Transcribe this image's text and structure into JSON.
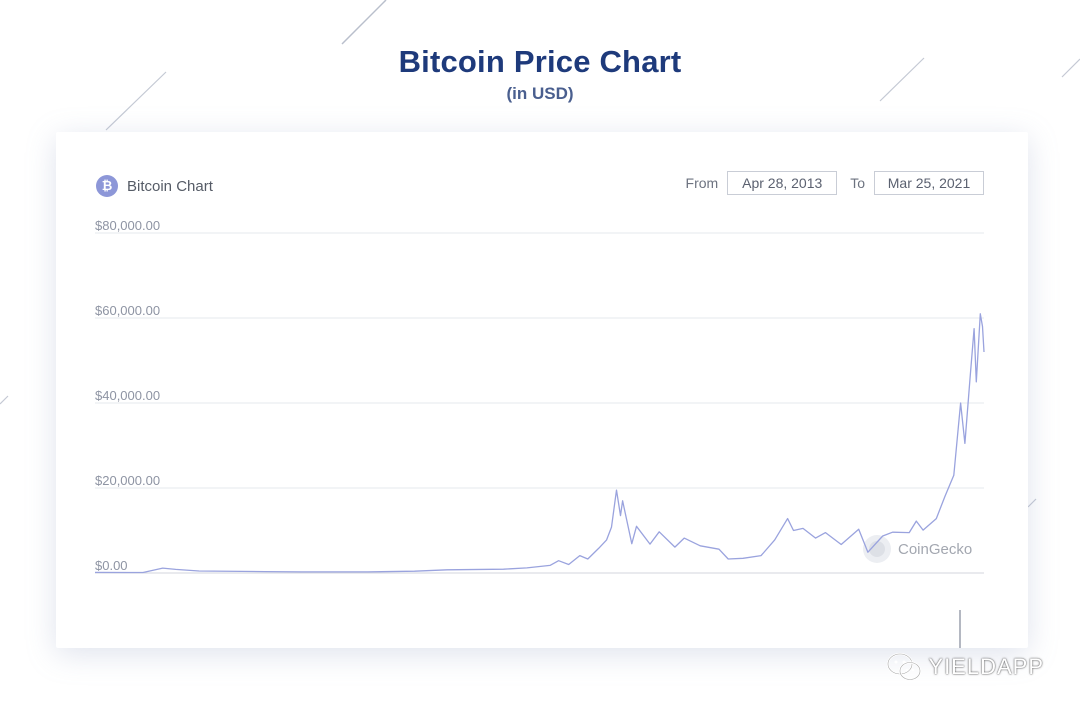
{
  "header": {
    "title": "Bitcoin Price Chart",
    "subtitle": "(in USD)"
  },
  "card": {
    "icon": "bitcoin-icon",
    "chart_name": "Bitcoin Chart",
    "from_label": "From",
    "from_date": "Apr 28, 2013",
    "to_label": "To",
    "to_date": "Mar 25, 2021",
    "watermark": "CoinGecko"
  },
  "footer": {
    "brand": "YIELDAPP",
    "brand_icon": "wechat-icon"
  },
  "colors": {
    "title": "#1e3a7b",
    "line": "#9aa3de",
    "icon": "#8d97d8"
  },
  "chart_data": {
    "type": "line",
    "series": [
      {
        "values": [
          [
            "2013-04-28",
            135
          ],
          [
            "2013-10-01",
            125
          ],
          [
            "2013-12-04",
            1150
          ],
          [
            "2014-01-15",
            850
          ],
          [
            "2014-04-01",
            470
          ],
          [
            "2014-11-01",
            330
          ],
          [
            "2015-03-01",
            250
          ],
          [
            "2015-10-01",
            250
          ],
          [
            "2016-03-01",
            420
          ],
          [
            "2016-06-15",
            750
          ],
          [
            "2016-12-15",
            900
          ],
          [
            "2017-03-01",
            1200
          ],
          [
            "2017-05-15",
            1800
          ],
          [
            "2017-06-12",
            2900
          ],
          [
            "2017-07-15",
            2000
          ],
          [
            "2017-08-20",
            4100
          ],
          [
            "2017-09-15",
            3300
          ],
          [
            "2017-10-20",
            5800
          ],
          [
            "2017-11-15",
            7800
          ],
          [
            "2017-12-01",
            10800
          ],
          [
            "2017-12-17",
            19500
          ],
          [
            "2017-12-30",
            13500
          ],
          [
            "2018-01-06",
            17000
          ],
          [
            "2018-02-05",
            6900
          ],
          [
            "2018-02-20",
            11000
          ],
          [
            "2018-04-05",
            6800
          ],
          [
            "2018-05-05",
            9700
          ],
          [
            "2018-06-25",
            6100
          ],
          [
            "2018-07-25",
            8200
          ],
          [
            "2018-09-15",
            6400
          ],
          [
            "2018-11-15",
            5600
          ],
          [
            "2018-12-15",
            3300
          ],
          [
            "2019-02-01",
            3450
          ],
          [
            "2019-04-01",
            4100
          ],
          [
            "2019-05-15",
            7800
          ],
          [
            "2019-06-26",
            12800
          ],
          [
            "2019-07-15",
            10000
          ],
          [
            "2019-08-15",
            10500
          ],
          [
            "2019-09-25",
            8200
          ],
          [
            "2019-10-27",
            9500
          ],
          [
            "2019-12-17",
            6700
          ],
          [
            "2020-02-12",
            10300
          ],
          [
            "2020-03-13",
            4900
          ],
          [
            "2020-04-30",
            8700
          ],
          [
            "2020-06-01",
            9600
          ],
          [
            "2020-07-25",
            9500
          ],
          [
            "2020-08-17",
            12200
          ],
          [
            "2020-09-08",
            10100
          ],
          [
            "2020-10-21",
            12800
          ],
          [
            "2020-11-18",
            18000
          ],
          [
            "2020-12-17",
            23000
          ],
          [
            "2021-01-08",
            40000
          ],
          [
            "2021-01-22",
            30500
          ],
          [
            "2021-02-08",
            46000
          ],
          [
            "2021-02-21",
            57500
          ],
          [
            "2021-02-28",
            45000
          ],
          [
            "2021-03-13",
            61000
          ],
          [
            "2021-03-20",
            58000
          ],
          [
            "2021-03-25",
            52000
          ]
        ]
      }
    ],
    "x_range": [
      "2013-04-28",
      "2021-03-25"
    ],
    "ylim": [
      0,
      80000
    ],
    "yticks": [
      "$0.00",
      "$20,000.00",
      "$40,000.00",
      "$60,000.00",
      "$80,000.00"
    ],
    "grid": true,
    "legend": "none"
  }
}
